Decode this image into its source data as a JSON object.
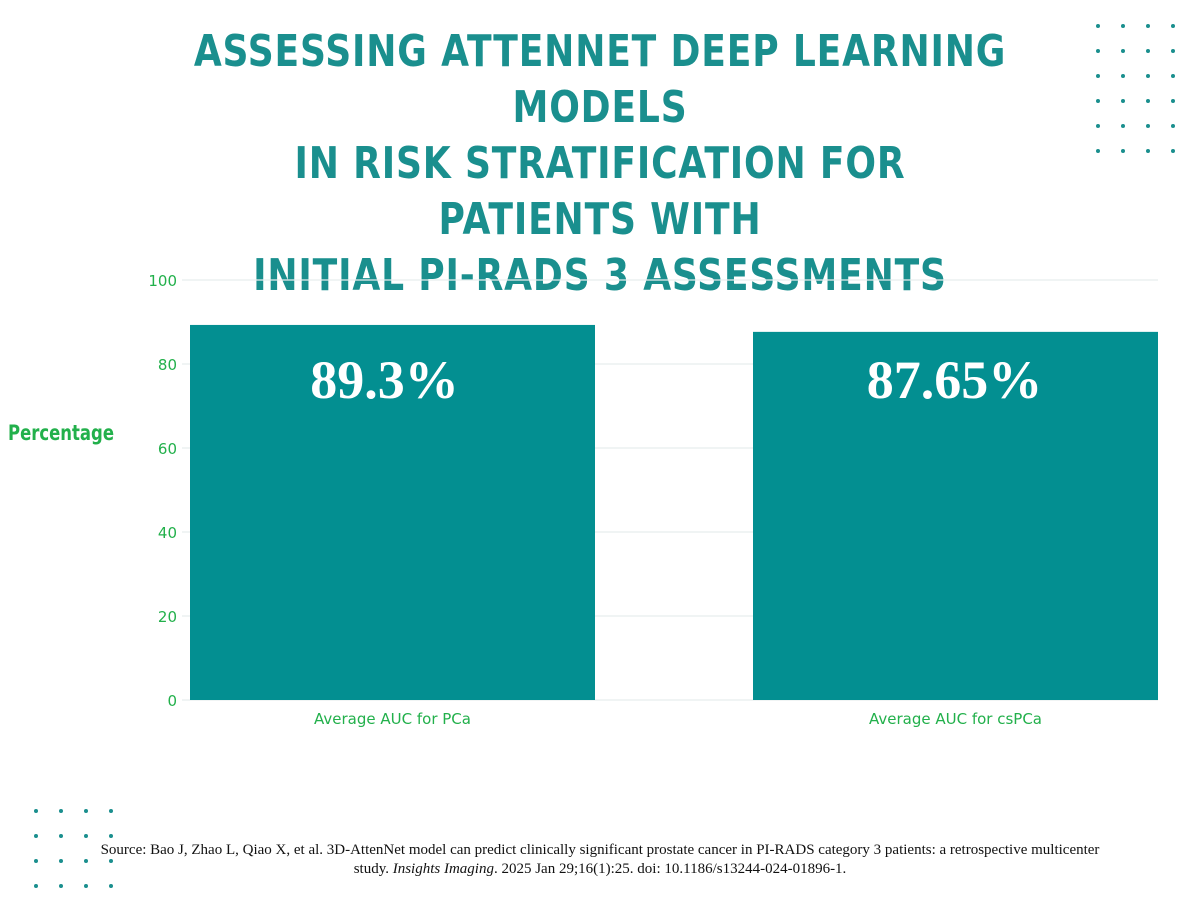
{
  "title_lines": [
    "ASSESSING ATTENNET DEEP LEARNING MODELS",
    "IN RISK STRATIFICATION FOR PATIENTS WITH",
    "INITIAL PI-RADS 3 ASSESSMENTS"
  ],
  "source": {
    "before_journal": "Source: Bao J, Zhao L, Qiao X, et al. 3D-AttenNet model can predict clinically significant prostate cancer in PI-RADS category 3 patients: a retrospective multicenter study. ",
    "journal": "Insights Imaging",
    "after_journal": ". 2025 Jan 29;16(1):25. doi: 10.1186/s13244-024-01896-1."
  },
  "colors": {
    "title": "#1a8f8e",
    "bar": "#038f91",
    "axis_text": "#22b04b",
    "gridline": "#e6eeee",
    "bar_label": "#ffffff",
    "dots": "#1a8f8e"
  },
  "chart_data": {
    "type": "bar",
    "categories": [
      "Average AUC for PCa",
      "Average AUC for csPCa"
    ],
    "values": [
      89.3,
      87.65
    ],
    "data_labels": [
      "89.3%",
      "87.65%"
    ],
    "ylabel": "Percentage",
    "xlabel": "",
    "ylim": [
      0,
      100
    ],
    "yticks": [
      0,
      20,
      40,
      60,
      80,
      100
    ],
    "grid": true,
    "legend": "none"
  }
}
